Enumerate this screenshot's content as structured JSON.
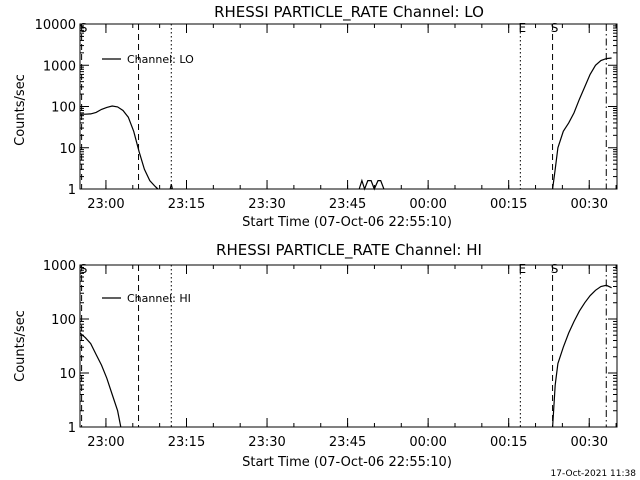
{
  "footer": {
    "timestamp": "17-Oct-2021 11:38"
  },
  "chart_data": [
    {
      "type": "line",
      "title": "RHESSI PARTICLE_RATE Channel: LO",
      "xlabel": "Start Time (07-Oct-06 22:55:10)",
      "ylabel": "Counts/sec",
      "legend": {
        "entry": "Channel: LO",
        "position": "top-left"
      },
      "y_scale": "log",
      "ylim": [
        1,
        10000
      ],
      "y_ticks": [
        {
          "value": 1,
          "label": "1"
        },
        {
          "value": 10,
          "label": "10"
        },
        {
          "value": 100,
          "label": "100"
        },
        {
          "value": 1000,
          "label": "1000"
        },
        {
          "value": 10000,
          "label": "10000"
        }
      ],
      "x_unit": "minutes after 22:55:10",
      "xlim": [
        0,
        100
      ],
      "x_ticks": [
        {
          "value": 4.83,
          "label": "23:00"
        },
        {
          "value": 19.83,
          "label": "23:15"
        },
        {
          "value": 34.83,
          "label": "23:30"
        },
        {
          "value": 49.83,
          "label": "23:45"
        },
        {
          "value": 64.83,
          "label": "00:00"
        },
        {
          "value": 79.83,
          "label": "00:15"
        },
        {
          "value": 94.83,
          "label": "00:30"
        }
      ],
      "markers": [
        {
          "label": "S",
          "x": 0.3,
          "style": "dashed"
        },
        {
          "label": "",
          "x": 10.9,
          "style": "dashed"
        },
        {
          "label": "",
          "x": 17.0,
          "style": "dotted"
        },
        {
          "label": "E",
          "x": 82.0,
          "style": "dotted"
        },
        {
          "label": "S",
          "x": 88.0,
          "style": "dashed"
        },
        {
          "label": "",
          "x": 98.0,
          "style": "dashdot"
        }
      ],
      "series": [
        {
          "name": "Channel: LO",
          "segments": [
            [
              [
                0,
                65
              ],
              [
                1,
                65
              ],
              [
                2,
                66
              ],
              [
                3,
                72
              ],
              [
                4,
                85
              ],
              [
                5,
                95
              ],
              [
                6,
                103
              ],
              [
                7,
                98
              ],
              [
                8,
                80
              ],
              [
                9,
                55
              ],
              [
                10,
                25
              ],
              [
                11,
                8
              ],
              [
                12,
                3
              ],
              [
                13,
                1.6
              ],
              [
                14,
                1.15
              ],
              [
                14.5,
                1
              ]
            ],
            [
              [
                16.8,
                1
              ],
              [
                17.0,
                1.3
              ],
              [
                17.2,
                1
              ]
            ],
            [
              [
                52,
                1
              ],
              [
                52.5,
                1.6
              ],
              [
                53,
                1
              ],
              [
                53.6,
                1.6
              ],
              [
                54.2,
                1.6
              ],
              [
                54.8,
                1
              ],
              [
                55.5,
                1.6
              ],
              [
                56,
                1.6
              ],
              [
                56.6,
                1
              ]
            ],
            [
              [
                88,
                1
              ],
              [
                88.5,
                3
              ],
              [
                89,
                10
              ],
              [
                90,
                25
              ],
              [
                91,
                40
              ],
              [
                92,
                70
              ],
              [
                93,
                150
              ],
              [
                94,
                300
              ],
              [
                95,
                600
              ],
              [
                96,
                1000
              ],
              [
                97,
                1300
              ],
              [
                98,
                1450
              ],
              [
                99,
                1500
              ]
            ]
          ]
        }
      ]
    },
    {
      "type": "line",
      "title": "RHESSI PARTICLE_RATE Channel: HI",
      "xlabel": "Start Time (07-Oct-06 22:55:10)",
      "ylabel": "Counts/sec",
      "legend": {
        "entry": "Channel: HI",
        "position": "top-left"
      },
      "y_scale": "log",
      "ylim": [
        1,
        1000
      ],
      "y_ticks": [
        {
          "value": 1,
          "label": "1"
        },
        {
          "value": 10,
          "label": "10"
        },
        {
          "value": 100,
          "label": "100"
        },
        {
          "value": 1000,
          "label": "1000"
        }
      ],
      "x_unit": "minutes after 22:55:10",
      "xlim": [
        0,
        100
      ],
      "x_ticks": [
        {
          "value": 4.83,
          "label": "23:00"
        },
        {
          "value": 19.83,
          "label": "23:15"
        },
        {
          "value": 34.83,
          "label": "23:30"
        },
        {
          "value": 49.83,
          "label": "23:45"
        },
        {
          "value": 64.83,
          "label": "00:00"
        },
        {
          "value": 79.83,
          "label": "00:15"
        },
        {
          "value": 94.83,
          "label": "00:30"
        }
      ],
      "markers": [
        {
          "label": "S",
          "x": 0.3,
          "style": "dashed"
        },
        {
          "label": "",
          "x": 10.9,
          "style": "dashed"
        },
        {
          "label": "",
          "x": 17.0,
          "style": "dotted"
        },
        {
          "label": "E",
          "x": 82.0,
          "style": "dotted"
        },
        {
          "label": "S",
          "x": 88.0,
          "style": "dashed"
        },
        {
          "label": "",
          "x": 98.0,
          "style": "dashdot"
        }
      ],
      "series": [
        {
          "name": "Channel: HI",
          "segments": [
            [
              [
                0,
                55
              ],
              [
                1,
                45
              ],
              [
                2,
                35
              ],
              [
                3,
                22
              ],
              [
                4,
                14
              ],
              [
                5,
                8
              ],
              [
                6,
                4
              ],
              [
                7,
                2
              ],
              [
                7.6,
                1
              ]
            ],
            [
              [
                88,
                1
              ],
              [
                88.5,
                6
              ],
              [
                89,
                15
              ],
              [
                90,
                30
              ],
              [
                91,
                55
              ],
              [
                92,
                90
              ],
              [
                93,
                140
              ],
              [
                94,
                200
              ],
              [
                95,
                270
              ],
              [
                96,
                340
              ],
              [
                97,
                400
              ],
              [
                98,
                420
              ],
              [
                99,
                380
              ]
            ]
          ]
        }
      ]
    }
  ]
}
